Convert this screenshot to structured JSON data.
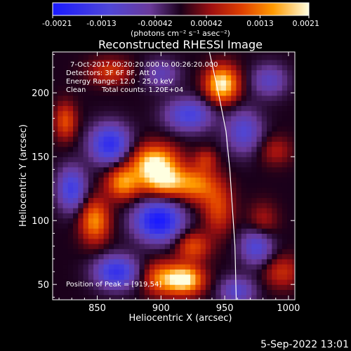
{
  "chart_data": {
    "type": "heatmap",
    "title": "Reconstructed RHESSI Image",
    "xlabel": "Heliocentric X (arcsec)",
    "ylabel": "Heliocentric Y (arcsec)",
    "xlim": [
      815,
      1005
    ],
    "ylim": [
      38,
      232
    ],
    "x_ticks": [
      850,
      900,
      950,
      1000
    ],
    "y_ticks": [
      50,
      100,
      150,
      200
    ],
    "colorbar": {
      "range": [
        -0.0021,
        0.0021
      ],
      "tick_labels": [
        "-0.0021",
        "-0.0013",
        "-0.00042",
        "0.00042",
        "0.0013",
        "0.0021"
      ],
      "tick_values": [
        -0.0021,
        -0.0013,
        -0.00042,
        0.00042,
        0.0013,
        0.0021
      ],
      "units_label": "(photons cm⁻² s⁻¹ asec⁻²)"
    },
    "annotations": {
      "time_range": "7-Oct-2017 00:20:20.000 to 00:26:20.000",
      "detectors": "Detectors: 3F 6F 8F, Att 0",
      "energy_range": "Energy Range: 12.0 - 25.0 keV",
      "method": "Clean",
      "counts": "Total counts: 1.20E+04",
      "peak": "Position of Peak = [919,54]"
    },
    "peak_position": [
      919,
      54
    ],
    "sources": [
      {
        "x": 895,
        "y": 145,
        "value": 0.0021,
        "sx": 13,
        "sy": 10
      },
      {
        "x": 905,
        "y": 130,
        "value": 0.0016,
        "sx": 14,
        "sy": 8
      },
      {
        "x": 870,
        "y": 130,
        "value": 0.0015,
        "sx": 9,
        "sy": 9
      },
      {
        "x": 848,
        "y": 100,
        "value": 0.0015,
        "sx": 8,
        "sy": 12
      },
      {
        "x": 930,
        "y": 128,
        "value": 0.0011,
        "sx": 10,
        "sy": 10
      },
      {
        "x": 945,
        "y": 110,
        "value": 0.001,
        "sx": 8,
        "sy": 14
      },
      {
        "x": 919,
        "y": 54,
        "value": 0.0021,
        "sx": 10,
        "sy": 8
      },
      {
        "x": 900,
        "y": 55,
        "value": 0.0013,
        "sx": 10,
        "sy": 9
      },
      {
        "x": 925,
        "y": 80,
        "value": 0.0011,
        "sx": 9,
        "sy": 8
      },
      {
        "x": 948,
        "y": 207,
        "value": 0.0021,
        "sx": 9,
        "sy": 10
      },
      {
        "x": 860,
        "y": 217,
        "value": 0.0009,
        "sx": 12,
        "sy": 7
      },
      {
        "x": 825,
        "y": 178,
        "value": 0.0011,
        "sx": 6,
        "sy": 10
      },
      {
        "x": 935,
        "y": 148,
        "value": 0.0007,
        "sx": 6,
        "sy": 6
      },
      {
        "x": 990,
        "y": 155,
        "value": 0.0006,
        "sx": 9,
        "sy": 8
      },
      {
        "x": 995,
        "y": 60,
        "value": 0.0008,
        "sx": 10,
        "sy": 9
      },
      {
        "x": 980,
        "y": 100,
        "value": 0.0006,
        "sx": 8,
        "sy": 10
      },
      {
        "x": 898,
        "y": 100,
        "value": -0.0021,
        "sx": 13,
        "sy": 11
      },
      {
        "x": 860,
        "y": 160,
        "value": -0.0017,
        "sx": 11,
        "sy": 11
      },
      {
        "x": 865,
        "y": 60,
        "value": -0.0016,
        "sx": 12,
        "sy": 9
      },
      {
        "x": 830,
        "y": 125,
        "value": -0.0014,
        "sx": 8,
        "sy": 12
      },
      {
        "x": 922,
        "y": 183,
        "value": -0.0013,
        "sx": 13,
        "sy": 9
      },
      {
        "x": 965,
        "y": 170,
        "value": -0.0011,
        "sx": 10,
        "sy": 12
      },
      {
        "x": 975,
        "y": 80,
        "value": -0.0012,
        "sx": 9,
        "sy": 10
      },
      {
        "x": 985,
        "y": 210,
        "value": -0.0009,
        "sx": 10,
        "sy": 9
      },
      {
        "x": 960,
        "y": 45,
        "value": -0.001,
        "sx": 10,
        "sy": 8
      },
      {
        "x": 900,
        "y": 215,
        "value": -0.0008,
        "sx": 10,
        "sy": 8
      }
    ],
    "limb_arc": [
      [
        938,
        232
      ],
      [
        945,
        200
      ],
      [
        951,
        170
      ],
      [
        954,
        140
      ],
      [
        956,
        110
      ],
      [
        958,
        80
      ],
      [
        959,
        38
      ]
    ]
  },
  "footer": {
    "timestamp": "5-Sep-2022 13:01"
  }
}
